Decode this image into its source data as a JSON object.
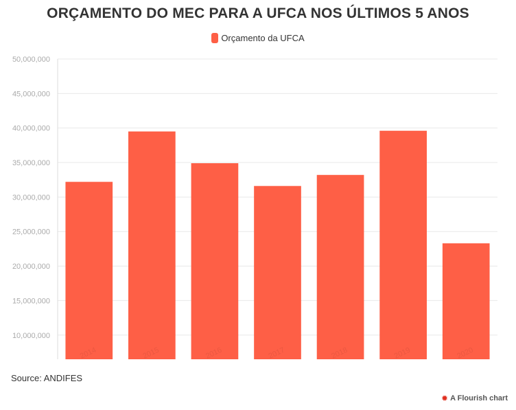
{
  "title": "ORÇAMENTO DO MEC PARA A UFCA NOS ÚLTIMOS 5 ANOS",
  "source": "Source: ANDIFES",
  "credit": "A Flourish chart",
  "credit_icon": "flourish-logo-icon",
  "colors": {
    "bar": "#fe5f46",
    "grid": "#e8e8e8",
    "tick": "#aaaaaa",
    "text": "#333333"
  },
  "chart_data": {
    "type": "bar",
    "title": "ORÇAMENTO DO MEC PARA A UFCA NOS ÚLTIMOS 5 ANOS",
    "categories": [
      "2014",
      "2015",
      "2016",
      "2017",
      "2018",
      "2019",
      "2020"
    ],
    "series": [
      {
        "name": "Orçamento da UFCA",
        "values": [
          32200000,
          39500000,
          34900000,
          31600000,
          33200000,
          39600000,
          23300000
        ]
      }
    ],
    "ylim": [
      6500000,
      50000000
    ],
    "yticks": [
      10000000,
      15000000,
      20000000,
      25000000,
      30000000,
      35000000,
      40000000,
      45000000,
      50000000
    ],
    "ytick_labels": [
      "10,000,000",
      "15,000,000",
      "20,000,000",
      "25,000,000",
      "30,000,000",
      "35,000,000",
      "40,000,000",
      "45,000,000",
      "50,000,000"
    ],
    "xlabel": "",
    "ylabel": "",
    "grid": true,
    "legend": "top-center"
  }
}
